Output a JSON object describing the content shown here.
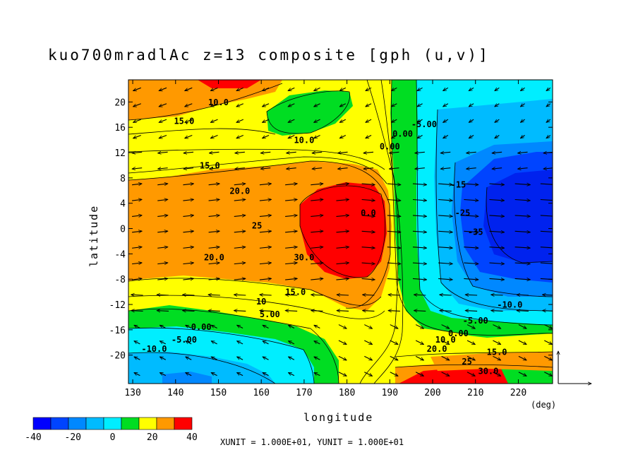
{
  "chart_data": {
    "type": "heatmap",
    "title": "kuo700mradlAc z=13 composite [gph (u,v)]",
    "xlabel": "longitude",
    "ylabel": "latitude",
    "x_unit": "(deg)",
    "xlim": [
      129,
      228
    ],
    "ylim": [
      -24.5,
      23.5
    ],
    "x_ticks": [
      130,
      140,
      150,
      160,
      170,
      180,
      190,
      200,
      210,
      220
    ],
    "x_tick_labels": [
      "130",
      "140",
      "150",
      "160",
      "170",
      "180",
      "190",
      "200",
      "210",
      "220"
    ],
    "y_ticks": [
      20,
      16,
      12,
      8,
      4,
      0,
      -4,
      -8,
      -12,
      -16,
      -20
    ],
    "y_tick_labels": [
      "20",
      "16",
      "12",
      "8",
      "4",
      "0",
      "-4",
      "-8",
      "-12",
      "-16",
      "-20"
    ],
    "colorbar": {
      "bounds": [
        -40,
        -35,
        -30,
        -25,
        -20,
        -15,
        -10,
        -5,
        0,
        5,
        10,
        15,
        20,
        25,
        30,
        35,
        40
      ],
      "colors": [
        "#0000ff",
        "#0044ff",
        "#0088ff",
        "#00bbff",
        "#00eeff",
        "#00dd22",
        "#ffff00",
        "#ff9900",
        "#ff0000"
      ],
      "tick_values": [
        -40,
        -20,
        0,
        20,
        40
      ],
      "tick_labels": [
        "-40",
        "-20",
        "0",
        "20",
        "40"
      ]
    },
    "contour_labels": [
      {
        "text": "15.0",
        "lon": 142,
        "lat": 16.5
      },
      {
        "text": "10.0",
        "lon": 150,
        "lat": 19.5
      },
      {
        "text": "15.0",
        "lon": 148,
        "lat": 9.5
      },
      {
        "text": "20.0",
        "lon": 155,
        "lat": 5.5
      },
      {
        "text": "25",
        "lon": 159,
        "lat": 0
      },
      {
        "text": "20.0",
        "lon": 149,
        "lat": -5
      },
      {
        "text": "30.0",
        "lon": 170,
        "lat": -5
      },
      {
        "text": "15.0",
        "lon": 168,
        "lat": -10.5
      },
      {
        "text": "10",
        "lon": 160,
        "lat": -12
      },
      {
        "text": "5.00",
        "lon": 162,
        "lat": -14
      },
      {
        "text": "0.00",
        "lon": 146,
        "lat": -16
      },
      {
        "text": "-5.00",
        "lon": 142,
        "lat": -18
      },
      {
        "text": "-10.0",
        "lon": 135,
        "lat": -19.5
      },
      {
        "text": "10.0",
        "lon": 170,
        "lat": 13.5
      },
      {
        "text": "0.00",
        "lon": 193,
        "lat": 14.5
      },
      {
        "text": "-5.00",
        "lon": 198,
        "lat": 16
      },
      {
        "text": "0.00",
        "lon": 190,
        "lat": 12.5
      },
      {
        "text": "-15",
        "lon": 206,
        "lat": 6.5
      },
      {
        "text": "-25",
        "lon": 207,
        "lat": 2
      },
      {
        "text": "-35",
        "lon": 210,
        "lat": -1
      },
      {
        "text": "0.0",
        "lon": 185,
        "lat": 2
      },
      {
        "text": "-10.0",
        "lon": 218,
        "lat": -12.5
      },
      {
        "text": "-5.00",
        "lon": 210,
        "lat": -15
      },
      {
        "text": "0.00",
        "lon": 206,
        "lat": -17
      },
      {
        "text": "10.0",
        "lon": 203,
        "lat": -18
      },
      {
        "text": "20.0",
        "lon": 201,
        "lat": -19.5
      },
      {
        "text": "15.0",
        "lon": 215,
        "lat": -20
      },
      {
        "text": "25",
        "lon": 208,
        "lat": -21.5
      },
      {
        "text": "30.0",
        "lon": 213,
        "lat": -23
      }
    ],
    "vector_reference": {
      "u": 10,
      "v": 10
    },
    "unit_note": "XUNIT = 1.000E+01, YUNIT = 1.000E+01",
    "grid": false,
    "legend": "bottom-left color bar"
  }
}
